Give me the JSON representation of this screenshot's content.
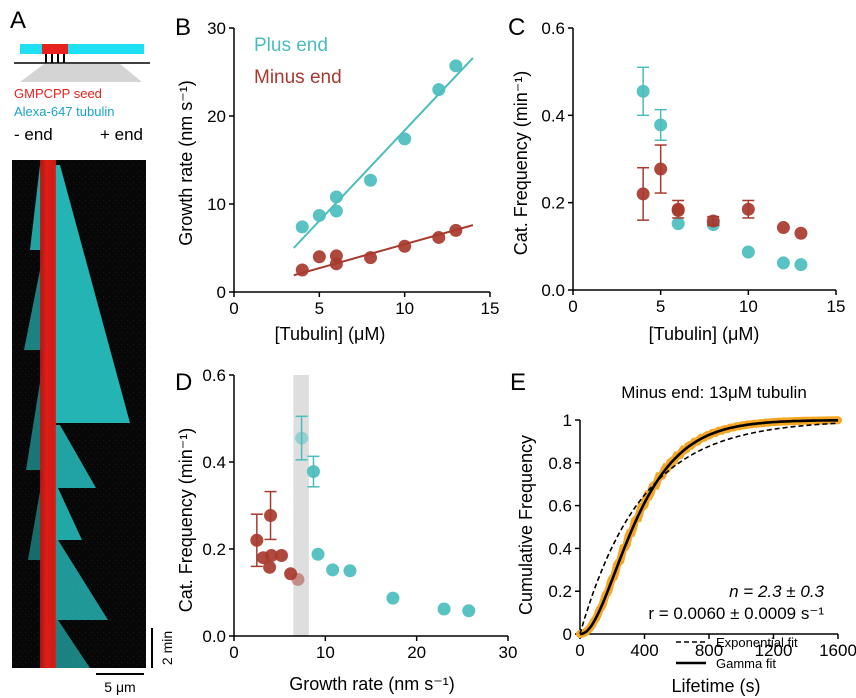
{
  "colors": {
    "plus": "#4bbdbd",
    "minus": "#a8392e",
    "seed": "#e8201e",
    "tubulin": "#1aa3c8",
    "kymo_cyan": "#2ee6e6",
    "kymo_red": "#f0201a",
    "gamma_fit": "#000000",
    "data_orange": "#f5a623",
    "shade": "#cccccc"
  },
  "panel_labels": [
    "A",
    "B",
    "C",
    "D",
    "E"
  ],
  "panelA": {
    "seed_label": "GMPCPP seed",
    "tubulin_label": "Alexa-647 tubulin",
    "minus_end": "- end",
    "plus_end": "+ end",
    "time_scale": "2 min",
    "length_scale": "5 μm"
  },
  "chart_data": [
    {
      "id": "B",
      "type": "scatter",
      "xlabel": "[Tubulin] (μM)",
      "ylabel": "Growth rate (nm s⁻¹)",
      "xlim": [
        0,
        15
      ],
      "ylim": [
        0,
        30
      ],
      "xticks": [
        0,
        5,
        10,
        15
      ],
      "yticks": [
        0,
        10,
        20,
        30
      ],
      "legend": [
        "Plus end",
        "Minus end"
      ],
      "series": [
        {
          "name": "Plus end",
          "x": [
            4,
            5,
            6,
            6,
            8,
            10,
            12,
            13
          ],
          "y": [
            7.4,
            8.7,
            9.2,
            10.8,
            12.7,
            17.4,
            23.0,
            25.7
          ],
          "fit": [
            [
              3.5,
              5.0
            ],
            [
              14,
              26.6
            ]
          ]
        },
        {
          "name": "Minus end",
          "x": [
            4,
            5,
            6,
            6,
            8,
            10,
            12,
            13
          ],
          "y": [
            2.5,
            4.0,
            3.2,
            4.1,
            3.9,
            5.2,
            6.2,
            7.0
          ],
          "fit": [
            [
              3.5,
              1.9
            ],
            [
              14,
              7.6
            ]
          ]
        }
      ]
    },
    {
      "id": "C",
      "type": "scatter",
      "xlabel": "[Tubulin] (μM)",
      "ylabel": "Cat. Frequency (min⁻¹)",
      "xlim": [
        0,
        15
      ],
      "ylim": [
        0,
        0.6
      ],
      "xticks": [
        0,
        5,
        10,
        15
      ],
      "yticks": [
        0.0,
        0.2,
        0.4,
        0.6
      ],
      "series": [
        {
          "name": "Plus end",
          "x": [
            4,
            5,
            6,
            8,
            10,
            12,
            13
          ],
          "y": [
            0.455,
            0.378,
            0.152,
            0.15,
            0.087,
            0.062,
            0.058
          ],
          "err": [
            0.055,
            0.035,
            0.0,
            0.0,
            0.0,
            0.0,
            0.0
          ]
        },
        {
          "name": "Minus end",
          "x": [
            4,
            5,
            6,
            6,
            8,
            10,
            12,
            13
          ],
          "y": [
            0.22,
            0.277,
            0.185,
            0.182,
            0.158,
            0.185,
            0.143,
            0.13
          ],
          "err": [
            0.06,
            0.055,
            0.02,
            0.0,
            0.01,
            0.02,
            0.0,
            0.0
          ]
        }
      ]
    },
    {
      "id": "D",
      "type": "scatter",
      "xlabel": "Growth rate (nm s⁻¹)",
      "ylabel": "Cat. Frequency (min⁻¹)",
      "xlim": [
        0,
        30
      ],
      "ylim": [
        0,
        0.6
      ],
      "xticks": [
        0,
        10,
        20,
        30
      ],
      "yticks": [
        0.0,
        0.2,
        0.4,
        0.6
      ],
      "shaded_x": [
        6.5,
        8.2
      ],
      "series": [
        {
          "name": "Plus end",
          "x": [
            7.4,
            8.7,
            9.2,
            10.8,
            12.7,
            17.4,
            23.0,
            25.7
          ],
          "y": [
            0.455,
            0.378,
            0.188,
            0.152,
            0.15,
            0.087,
            0.062,
            0.058
          ],
          "err": [
            0.05,
            0.035,
            0.0,
            0.0,
            0.0,
            0.0,
            0.0,
            0.0
          ]
        },
        {
          "name": "Minus end",
          "x": [
            2.5,
            3.2,
            3.9,
            4.0,
            4.1,
            5.2,
            6.2,
            7.0
          ],
          "y": [
            0.22,
            0.18,
            0.158,
            0.277,
            0.185,
            0.185,
            0.143,
            0.13
          ],
          "err": [
            0.06,
            0.0,
            0.0,
            0.055,
            0.0,
            0.0,
            0.0,
            0.0
          ]
        }
      ]
    },
    {
      "id": "E",
      "type": "line",
      "title": "Minus end: 13μM tubulin",
      "xlabel": "Lifetime (s)",
      "ylabel": "Cumulative Frequency",
      "xlim": [
        0,
        1600
      ],
      "ylim": [
        0,
        1
      ],
      "xticks": [
        0,
        400,
        800,
        1200,
        1600
      ],
      "yticks": [
        0,
        0.2,
        0.4,
        0.6,
        0.8,
        1
      ],
      "annotation_n": "n = 2.3 ± 0.3",
      "annotation_r": "r = 0.0060 ± 0.0009 s⁻¹",
      "legend": [
        "Exponential fit",
        "Gamma fit"
      ],
      "gamma": {
        "n": 2.3,
        "r": 0.006
      },
      "exponential": {
        "rate": 0.00262
      }
    }
  ]
}
